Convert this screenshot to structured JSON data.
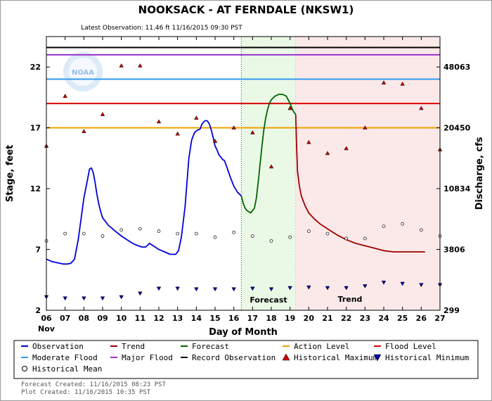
{
  "title": "NOOKSACK - AT FERNDALE  (NKSW1)",
  "subtitle": "Latest Observation: 11.46 ft 11/16/2015 09:30 PST",
  "colors": {
    "observation": "#0000dd",
    "trend": "#a00000",
    "forecast": "#006600",
    "action": "#f0a000",
    "flood": "#dd0000",
    "moderate": "#3399ee",
    "major": "#9933cc",
    "record": "#000000",
    "hist_max": "#cc0000",
    "hist_min": "#0000aa",
    "forecast_bg": "#eaf8e6",
    "trend_bg": "#fbe9e9"
  },
  "chart_data": {
    "type": "line",
    "xlabel": "Day of Month",
    "ylabel": "Stage, feet",
    "y2label": "Discharge, cfs",
    "x_month_label": "Nov",
    "xlim": [
      6,
      27
    ],
    "ylim": [
      2,
      24.5
    ],
    "x_ticks": [
      "06",
      "07",
      "08",
      "09",
      "10",
      "11",
      "12",
      "13",
      "14",
      "15",
      "16",
      "17",
      "18",
      "19",
      "20",
      "21",
      "22",
      "23",
      "24",
      "25",
      "26",
      "27"
    ],
    "y_ticks": [
      2,
      7,
      12,
      17,
      22
    ],
    "y2_ticks": [
      {
        "stage": 2,
        "label": "299"
      },
      {
        "stage": 7,
        "label": "3806"
      },
      {
        "stage": 12,
        "label": "10834"
      },
      {
        "stage": 17,
        "label": "20450"
      },
      {
        "stage": 22,
        "label": "48063"
      }
    ],
    "grid": false,
    "regions": [
      {
        "name": "Forecast",
        "x_start": 16.4,
        "x_end": 19.3
      },
      {
        "name": "Trend",
        "x_start": 19.3,
        "x_end": 27
      }
    ],
    "threshold_lines": [
      {
        "name": "Action Level",
        "y": 17.0,
        "color_key": "action"
      },
      {
        "name": "Flood Level",
        "y": 19.0,
        "color_key": "flood"
      },
      {
        "name": "Moderate Flood",
        "y": 21.0,
        "color_key": "moderate"
      },
      {
        "name": "Major Flood",
        "y": 23.0,
        "color_key": "major"
      },
      {
        "name": "Record Observation",
        "y": 23.6,
        "color_key": "record"
      }
    ],
    "series": [
      {
        "name": "Observation",
        "color_key": "observation",
        "x": [
          6.0,
          6.3,
          6.6,
          6.9,
          7.1,
          7.3,
          7.5,
          7.7,
          7.85,
          8.0,
          8.1,
          8.2,
          8.3,
          8.4,
          8.5,
          8.6,
          8.7,
          8.8,
          8.9,
          9.0,
          9.3,
          9.6,
          10.0,
          10.3,
          10.6,
          10.9,
          11.1,
          11.3,
          11.5,
          11.7,
          12.0,
          12.3,
          12.6,
          12.9,
          13.05,
          13.2,
          13.4,
          13.6,
          13.75,
          13.9,
          14.05,
          14.2,
          14.3,
          14.4,
          14.5,
          14.6,
          14.7,
          14.8,
          14.9,
          15.0,
          15.1,
          15.2,
          15.3,
          15.4,
          15.5,
          15.6,
          15.8,
          16.0,
          16.2,
          16.4
        ],
        "y": [
          6.2,
          6.0,
          5.9,
          5.8,
          5.8,
          5.85,
          6.2,
          7.8,
          9.5,
          11.2,
          12.0,
          12.8,
          13.6,
          13.7,
          13.3,
          12.5,
          11.5,
          10.7,
          10.1,
          9.6,
          9.0,
          8.6,
          8.1,
          7.8,
          7.5,
          7.3,
          7.2,
          7.2,
          7.5,
          7.3,
          7.0,
          6.8,
          6.6,
          6.6,
          6.9,
          8.0,
          10.5,
          14.5,
          16.0,
          16.6,
          16.8,
          16.9,
          17.3,
          17.5,
          17.6,
          17.55,
          17.3,
          16.8,
          16.2,
          15.5,
          15.2,
          14.8,
          14.6,
          14.4,
          14.3,
          13.9,
          13.0,
          12.2,
          11.7,
          11.4
        ]
      },
      {
        "name": "Forecast",
        "color_key": "forecast",
        "x": [
          16.4,
          16.5,
          16.6,
          16.7,
          16.8,
          16.9,
          17.0,
          17.1,
          17.2,
          17.3,
          17.4,
          17.5,
          17.6,
          17.7,
          17.8,
          17.9,
          18.0,
          18.2,
          18.4,
          18.6,
          18.8,
          19.0,
          19.1,
          19.2,
          19.3
        ],
        "y": [
          11.4,
          10.8,
          10.4,
          10.2,
          10.1,
          10.0,
          10.2,
          10.4,
          11.2,
          12.5,
          14.0,
          15.5,
          16.8,
          17.8,
          18.5,
          19.0,
          19.3,
          19.6,
          19.75,
          19.75,
          19.6,
          19.0,
          18.6,
          18.3,
          18.1
        ]
      },
      {
        "name": "Trend",
        "color_key": "trend",
        "x": [
          19.3,
          19.35,
          19.4,
          19.5,
          19.6,
          19.8,
          20.0,
          20.3,
          20.6,
          21.0,
          21.5,
          22.0,
          22.5,
          23.0,
          23.5,
          24.0,
          24.5,
          25.0,
          25.5,
          26.0,
          26.2
        ],
        "y": [
          18.1,
          15.5,
          13.4,
          12.2,
          11.4,
          10.6,
          10.0,
          9.5,
          9.1,
          8.7,
          8.2,
          7.8,
          7.5,
          7.3,
          7.1,
          6.9,
          6.8,
          6.8,
          6.8,
          6.8,
          6.8
        ]
      }
    ],
    "historical_maximum": {
      "name": "Historical Maximum",
      "x": [
        6,
        7,
        8,
        9,
        10,
        11,
        12,
        13,
        14,
        15,
        16,
        17,
        18,
        19,
        20,
        21,
        22,
        23,
        24,
        25,
        26,
        27
      ],
      "y": [
        15.5,
        19.6,
        16.7,
        18.1,
        22.1,
        22.1,
        17.5,
        16.5,
        17.8,
        15.9,
        17.0,
        16.6,
        13.8,
        18.6,
        15.8,
        14.9,
        15.3,
        17.0,
        20.7,
        20.6,
        18.6,
        15.2
      ]
    },
    "historical_mean": {
      "name": "Historical Mean",
      "x": [
        6,
        7,
        8,
        9,
        10,
        11,
        12,
        13,
        14,
        15,
        16,
        17,
        18,
        19,
        20,
        21,
        22,
        23,
        24,
        25,
        26,
        27
      ],
      "y": [
        7.7,
        8.3,
        8.3,
        8.1,
        8.6,
        8.7,
        8.5,
        8.3,
        8.3,
        8.0,
        8.4,
        8.1,
        7.7,
        8.0,
        8.5,
        8.3,
        7.9,
        7.9,
        8.9,
        9.1,
        8.6,
        8.1
      ]
    },
    "historical_minimum": {
      "name": "Historical Minimum",
      "x": [
        6,
        7,
        8,
        9,
        10,
        11,
        12,
        13,
        14,
        15,
        16,
        17,
        18,
        19,
        20,
        21,
        22,
        23,
        24,
        25,
        26,
        27
      ],
      "y": [
        3.1,
        3.0,
        3.0,
        3.0,
        3.1,
        3.4,
        3.8,
        3.8,
        3.75,
        3.75,
        3.75,
        3.8,
        3.75,
        3.85,
        3.9,
        3.85,
        3.85,
        4.0,
        4.3,
        4.2,
        4.1,
        4.1
      ]
    },
    "region_labels": [
      "Forecast",
      "Trend"
    ]
  },
  "legend": [
    {
      "label": "Observation",
      "kind": "line",
      "color_key": "observation"
    },
    {
      "label": "Trend",
      "kind": "line",
      "color_key": "trend"
    },
    {
      "label": "Forecast",
      "kind": "line",
      "color_key": "forecast"
    },
    {
      "label": "Action Level",
      "kind": "line",
      "color_key": "action"
    },
    {
      "label": "Flood Level",
      "kind": "line",
      "color_key": "flood"
    },
    {
      "label": "Moderate Flood",
      "kind": "line",
      "color_key": "moderate"
    },
    {
      "label": "Major Flood",
      "kind": "line",
      "color_key": "major"
    },
    {
      "label": "Record Observation",
      "kind": "line",
      "color_key": "record"
    },
    {
      "label": "Historical Maximum",
      "kind": "triangle-up",
      "color_key": "hist_max"
    },
    {
      "label": "Historical Minimum",
      "kind": "triangle-down",
      "color_key": "hist_min"
    },
    {
      "label": "Historical Mean",
      "kind": "circle",
      "color_key": "record"
    }
  ],
  "footer": {
    "forecast_created": "Forecast Created: 11/16/2015 08:23 PST",
    "plot_created": "Plot Created: 11/16/2015 10:35 PST"
  },
  "logo_text": "NOAA"
}
